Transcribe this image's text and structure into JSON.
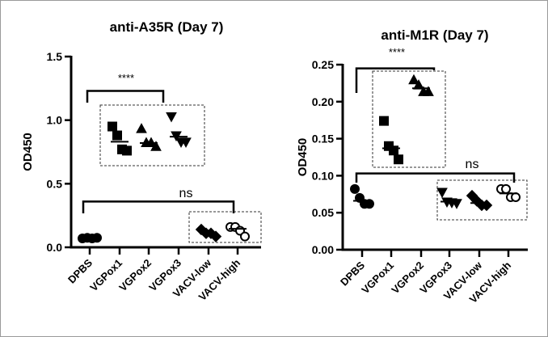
{
  "chart_data": [
    {
      "type": "scatter",
      "title": "anti-A35R (Day 7)",
      "ylabel": "OD450",
      "xlabel": "",
      "ylim": [
        0,
        1.5
      ],
      "yticks": [
        "0.0",
        "0.5",
        "1.0",
        "1.5"
      ],
      "ytick_values": [
        0,
        0.5,
        1.0,
        1.5
      ],
      "categories": [
        "DPBS",
        "VGPox1",
        "VGPox2",
        "VGPox3",
        "VACV-low",
        "VACV-high"
      ],
      "series": [
        {
          "name": "DPBS",
          "marker": "circle",
          "values": [],
          "median": null
        },
        {
          "name": "VGPox1",
          "marker": "square",
          "values": [
            0.95,
            0.88,
            0.77,
            0.76
          ],
          "median": 0.83
        },
        {
          "name": "VGPox2",
          "marker": "triangle",
          "values": [
            0.93,
            0.82,
            0.82,
            0.79
          ],
          "median": 0.82
        },
        {
          "name": "VGPox3",
          "marker": "triangle-down",
          "values": [
            1.03,
            0.88,
            0.83,
            0.83
          ],
          "median": 0.87
        },
        {
          "name": "VACV-low",
          "marker": "diamond",
          "values": [
            0.14,
            0.11,
            0.11,
            0.085
          ],
          "median": 0.11
        },
        {
          "name": "VACV-high",
          "marker": "circle-open",
          "values": [
            0.16,
            0.16,
            0.13,
            0.085
          ],
          "median": 0.145
        }
      ],
      "dpbs_values": [
        0.07,
        0.075,
        0.07,
        0.075
      ],
      "annotations": [
        {
          "text": "****",
          "from": "DPBS",
          "to": "VGPox2",
          "level": 1.23
        },
        {
          "text": "ns",
          "from": "DPBS",
          "to": "VACV-high",
          "level": 0.36
        }
      ]
    },
    {
      "type": "scatter",
      "title": "anti-M1R (Day 7)",
      "ylabel": "OD450",
      "xlabel": "",
      "ylim": [
        0,
        0.25
      ],
      "yticks": [
        "0.00",
        "0.05",
        "0.10",
        "0.15",
        "0.20",
        "0.25"
      ],
      "ytick_values": [
        0,
        0.05,
        0.1,
        0.15,
        0.2,
        0.25
      ],
      "categories": [
        "DPBS",
        "VGPox1",
        "VGPox2",
        "VGPox3",
        "VACV-low",
        "VACV-high"
      ],
      "series": [
        {
          "name": "DPBS",
          "marker": "circle",
          "values": [
            0.082,
            0.07,
            0.062,
            0.062
          ],
          "median": 0.066
        },
        {
          "name": "VGPox1",
          "marker": "square",
          "values": [
            0.174,
            0.14,
            0.134,
            0.122
          ],
          "median": 0.137
        },
        {
          "name": "VGPox2",
          "marker": "triangle",
          "values": [
            0.229,
            0.222,
            0.213,
            0.213
          ],
          "median": 0.218
        },
        {
          "name": "VGPox3",
          "marker": "triangle-down",
          "values": [
            0.078,
            0.065,
            0.064,
            0.063
          ],
          "median": 0.065
        },
        {
          "name": "VACV-low",
          "marker": "diamond",
          "values": [
            0.073,
            0.066,
            0.06,
            0.06
          ],
          "median": 0.063
        },
        {
          "name": "VACV-high",
          "marker": "circle-open",
          "values": [
            0.082,
            0.082,
            0.071,
            0.071
          ],
          "median": 0.076
        }
      ],
      "annotations": [
        {
          "text": "****",
          "from": "DPBS",
          "to": "VGPox2",
          "level": 0.245
        },
        {
          "text": "ns",
          "from": "DPBS",
          "to": "VACV-high",
          "level": 0.103
        }
      ]
    }
  ]
}
